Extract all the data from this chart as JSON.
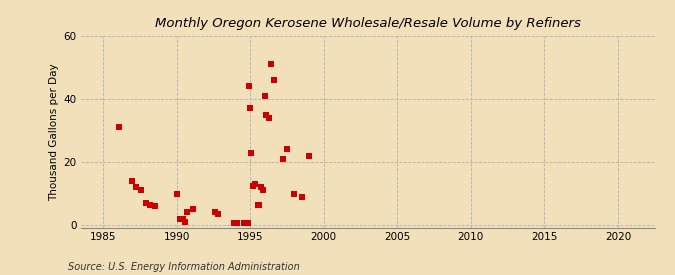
{
  "title": "Monthly Oregon Kerosene Wholesale/Resale Volume by Refiners",
  "ylabel": "Thousand Gallons per Day",
  "source": "Source: U.S. Energy Information Administration",
  "background_color": "#f2e0bb",
  "plot_bg_color": "#f2e0bb",
  "marker_color": "#cc0000",
  "marker_size": 18,
  "xlim": [
    1983.5,
    2022.5
  ],
  "ylim": [
    -1,
    60
  ],
  "xticks": [
    1985,
    1990,
    1995,
    2000,
    2005,
    2010,
    2015,
    2020
  ],
  "yticks": [
    0,
    20,
    40,
    60
  ],
  "data_x": [
    1986.1,
    1987.0,
    1987.25,
    1987.6,
    1987.9,
    1988.2,
    1988.5,
    1990.0,
    1990.2,
    1990.4,
    1990.55,
    1990.7,
    1991.1,
    1992.6,
    1992.8,
    1993.9,
    1994.1,
    1994.6,
    1994.75,
    1994.85,
    1994.92,
    1995.0,
    1995.08,
    1995.17,
    1995.33,
    1995.5,
    1995.6,
    1995.75,
    1995.9,
    1996.0,
    1996.1,
    1996.25,
    1996.42,
    1996.6,
    1997.2,
    1997.5,
    1998.0,
    1998.5,
    1999.0
  ],
  "data_y": [
    31.0,
    14.0,
    12.0,
    11.0,
    7.0,
    6.5,
    6.0,
    10.0,
    2.0,
    2.0,
    1.0,
    4.0,
    5.0,
    4.0,
    3.5,
    0.8,
    0.8,
    0.8,
    0.8,
    0.8,
    44.0,
    37.0,
    23.0,
    12.5,
    13.0,
    6.5,
    6.5,
    12.0,
    11.0,
    41.0,
    35.0,
    34.0,
    51.0,
    46.0,
    21.0,
    24.0,
    10.0,
    9.0,
    22.0
  ]
}
